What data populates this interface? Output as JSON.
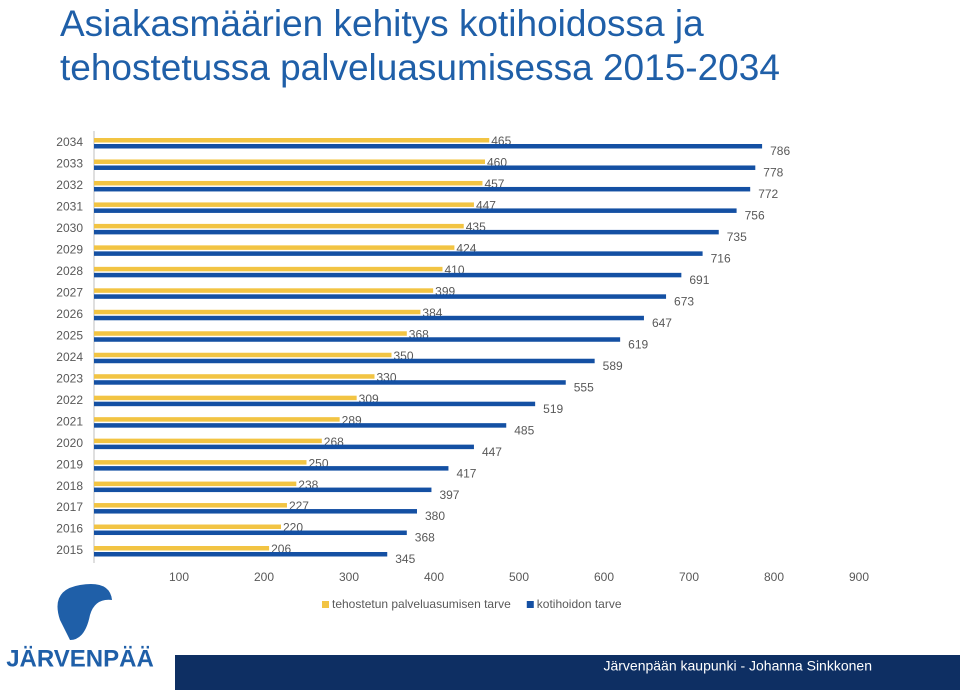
{
  "chart_data": {
    "type": "bar",
    "orientation": "horizontal",
    "title": "Asiakasmäärien kehitys kotihoidossa ja tehostetussa palveluasumisessa 2015-2034",
    "categories": [
      "2015",
      "2016",
      "2017",
      "2018",
      "2019",
      "2020",
      "2021",
      "2022",
      "2023",
      "2024",
      "2025",
      "2026",
      "2027",
      "2028",
      "2029",
      "2030",
      "2031",
      "2032",
      "2033",
      "2034"
    ],
    "series": [
      {
        "name": "tehostetun palveluasumisen tarve",
        "color": "#f2c443",
        "values": [
          206,
          220,
          227,
          238,
          250,
          268,
          289,
          309,
          330,
          350,
          368,
          384,
          399,
          410,
          424,
          435,
          447,
          457,
          460,
          465
        ]
      },
      {
        "name": "kotihoidon tarve",
        "color": "#1450a3",
        "values": [
          345,
          368,
          380,
          397,
          417,
          447,
          485,
          519,
          555,
          589,
          619,
          647,
          673,
          691,
          716,
          735,
          756,
          772,
          778,
          786
        ]
      }
    ],
    "xlim": [
      0,
      900
    ],
    "xticks": [
      100,
      200,
      300,
      400,
      500,
      600,
      700,
      800,
      900
    ],
    "legend": "bottom"
  },
  "footer": {
    "logo": "JÄRVENPÄÄ",
    "credit": "Järvenpään kaupunki - Johanna Sinkkonen"
  }
}
